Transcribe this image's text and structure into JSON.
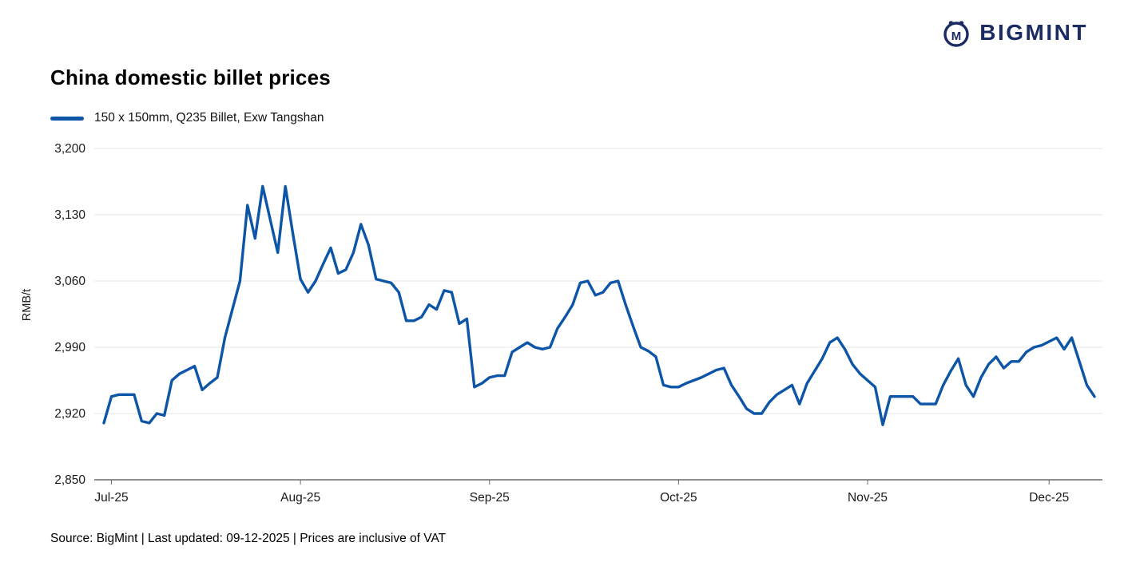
{
  "logo": {
    "brand": "BIGMINT",
    "icon": "bigmint-circle-m-icon",
    "color": "#1b2b63"
  },
  "title": "China domestic billet prices",
  "legend": {
    "label": "150 x 150mm, Q235 Billet, Exw Tangshan"
  },
  "footer": {
    "text": "Source: BigMint | Last updated: 09-12-2025 | Prices are inclusive of VAT"
  },
  "chart_data": {
    "type": "line",
    "title": "China domestic billet prices",
    "xlabel": "",
    "ylabel": "RMB/t",
    "ylim": [
      2850,
      3200
    ],
    "yticks": [
      2850,
      2920,
      2990,
      3060,
      3130,
      3200
    ],
    "x_tick_labels": [
      "Jul-25",
      "Aug-25",
      "Sep-25",
      "Oct-25",
      "Nov-25",
      "Dec-25"
    ],
    "x_tick_indices": [
      1,
      26,
      51,
      76,
      101,
      125
    ],
    "grid": "horizontal",
    "legend_position": "top-left",
    "line_color": "#0d55a6",
    "axis_color": "#6b6b6b",
    "grid_color": "#e4e4e4",
    "series": [
      {
        "name": "150 x 150mm, Q235 Billet, Exw Tangshan",
        "values": [
          2910,
          2938,
          2940,
          2940,
          2940,
          2912,
          2910,
          2920,
          2918,
          2955,
          2962,
          2966,
          2970,
          2945,
          2952,
          2958,
          3000,
          3030,
          3060,
          3140,
          3105,
          3160,
          3125,
          3090,
          3160,
          3110,
          3062,
          3048,
          3060,
          3078,
          3095,
          3068,
          3072,
          3090,
          3120,
          3098,
          3062,
          3060,
          3058,
          3048,
          3018,
          3018,
          3022,
          3035,
          3030,
          3050,
          3048,
          3015,
          3020,
          2948,
          2952,
          2958,
          2960,
          2960,
          2985,
          2990,
          2995,
          2990,
          2988,
          2990,
          3010,
          3022,
          3035,
          3058,
          3060,
          3045,
          3048,
          3058,
          3060,
          3035,
          3012,
          2990,
          2986,
          2980,
          2950,
          2948,
          2948,
          2952,
          2955,
          2958,
          2962,
          2966,
          2968,
          2950,
          2938,
          2925,
          2920,
          2920,
          2932,
          2940,
          2945,
          2950,
          2930,
          2952,
          2965,
          2978,
          2995,
          3000,
          2988,
          2972,
          2962,
          2955,
          2948,
          2908,
          2938,
          2938,
          2938,
          2938,
          2930,
          2930,
          2930,
          2950,
          2965,
          2978,
          2950,
          2938,
          2958,
          2972,
          2980,
          2968,
          2975,
          2975,
          2985,
          2990,
          2992,
          2996,
          3000,
          2988,
          3000,
          2975,
          2950,
          2938
        ]
      }
    ]
  }
}
